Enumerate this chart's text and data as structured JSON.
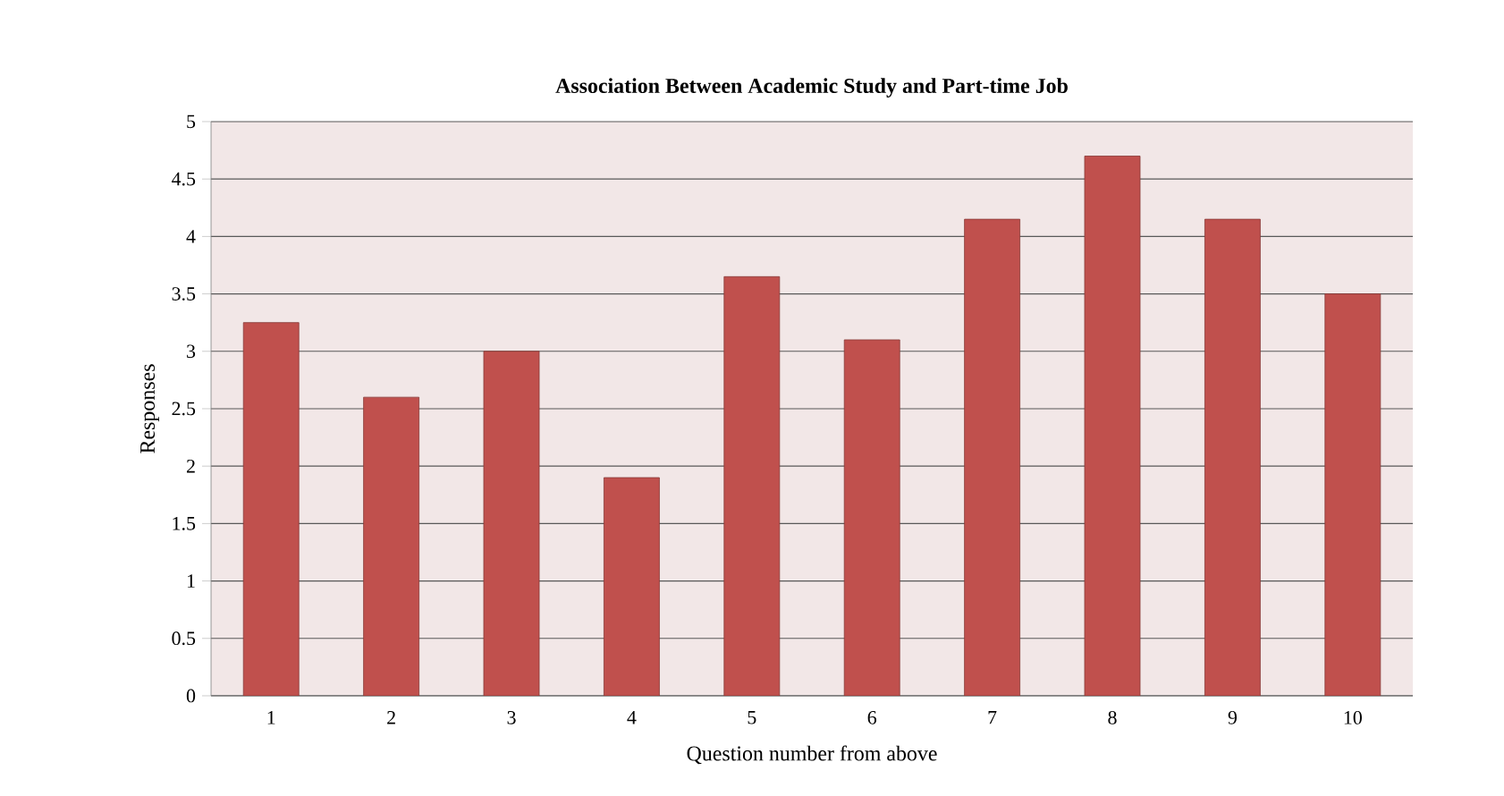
{
  "chart_data": {
    "type": "bar",
    "title": "Association Between Academic Study and Part-time Job",
    "xlabel": "Question number from above",
    "ylabel": "Responses",
    "categories": [
      "1",
      "2",
      "3",
      "4",
      "5",
      "6",
      "7",
      "8",
      "9",
      "10"
    ],
    "values": [
      3.25,
      2.6,
      3.0,
      1.9,
      3.65,
      3.1,
      4.15,
      4.7,
      4.15,
      3.5
    ],
    "color": "#c0504d",
    "ylim": [
      0,
      5
    ],
    "yticks": [
      0,
      0.5,
      1,
      1.5,
      2,
      2.5,
      3,
      3.5,
      4,
      4.5,
      5
    ],
    "grid": "y"
  }
}
